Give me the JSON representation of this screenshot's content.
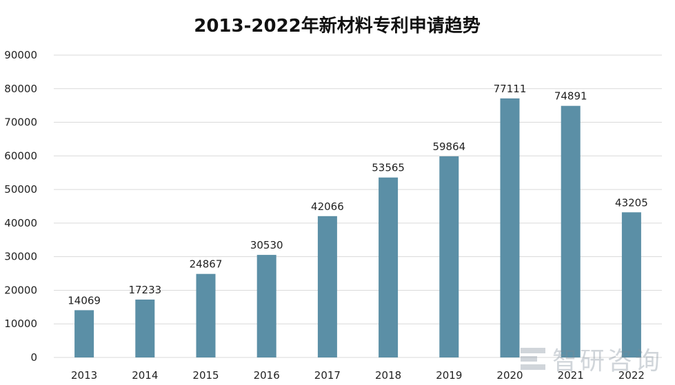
{
  "chart_data": {
    "type": "bar",
    "title": "2013-2022年新材料专利申请趋势",
    "categories": [
      "2013",
      "2014",
      "2015",
      "2016",
      "2017",
      "2018",
      "2019",
      "2020",
      "2021",
      "2022"
    ],
    "values": [
      14069,
      17233,
      24867,
      30530,
      42066,
      53565,
      59864,
      77111,
      74891,
      43205
    ],
    "ylim": [
      0,
      90000
    ],
    "yticks": [
      0,
      10000,
      20000,
      30000,
      40000,
      50000,
      60000,
      70000,
      80000,
      90000
    ],
    "ytick_labels": [
      "0",
      "10000",
      "20000",
      "30000",
      "40000",
      "50000",
      "60000",
      "70000",
      "80000",
      "90000"
    ],
    "grid": true,
    "legend": "none",
    "bar_color": "#5b8fa6",
    "grid_color": "#d9d9d9"
  },
  "watermark": {
    "text": "智研咨询"
  }
}
